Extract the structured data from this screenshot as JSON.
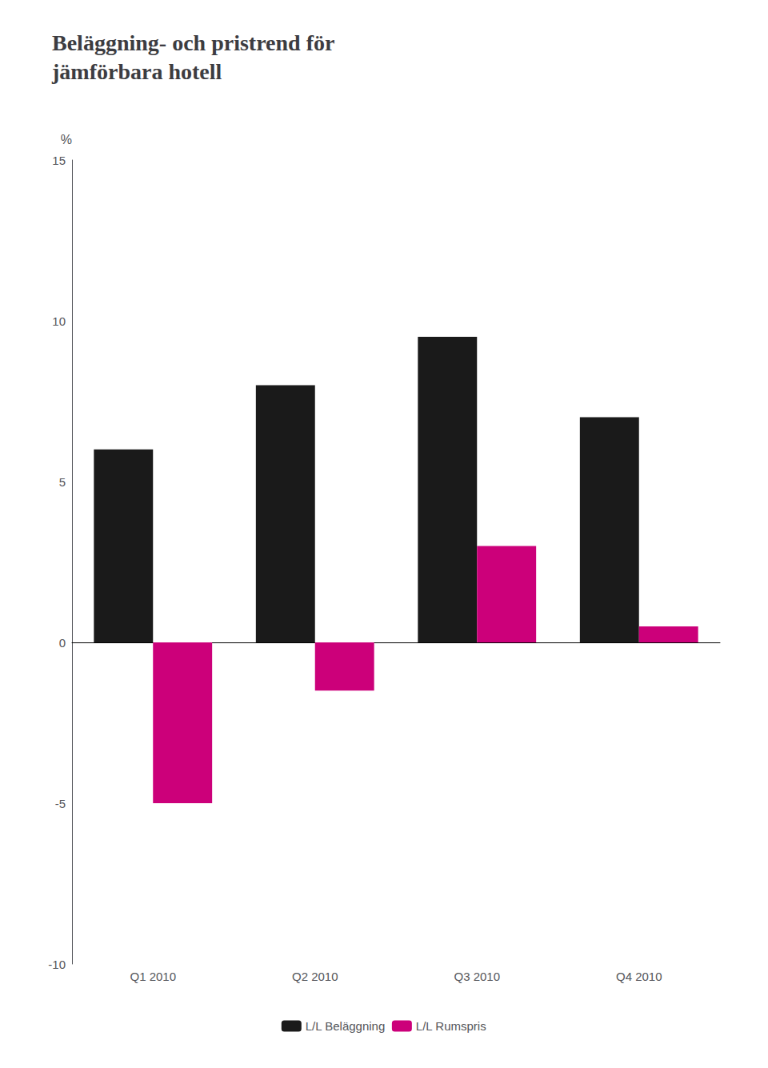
{
  "chart_data": {
    "type": "bar",
    "title": "Beläggning- och pristrend för\njämförbara hotell",
    "ylabel": "%",
    "categories": [
      "Q1 2010",
      "Q2 2010",
      "Q3 2010",
      "Q4 2010"
    ],
    "series": [
      {
        "name": "L/L Beläggning",
        "color": "#1a1a1a",
        "values": [
          6.0,
          8.0,
          9.5,
          7.0
        ]
      },
      {
        "name": "L/L Rumspris",
        "color": "#cc007a",
        "values": [
          -5.0,
          -1.5,
          3.0,
          0.5
        ]
      }
    ],
    "ylim": [
      -10,
      15
    ],
    "yticks": [
      -10,
      -5,
      0,
      5,
      10,
      15
    ],
    "legend": "bottom",
    "grid": false
  }
}
